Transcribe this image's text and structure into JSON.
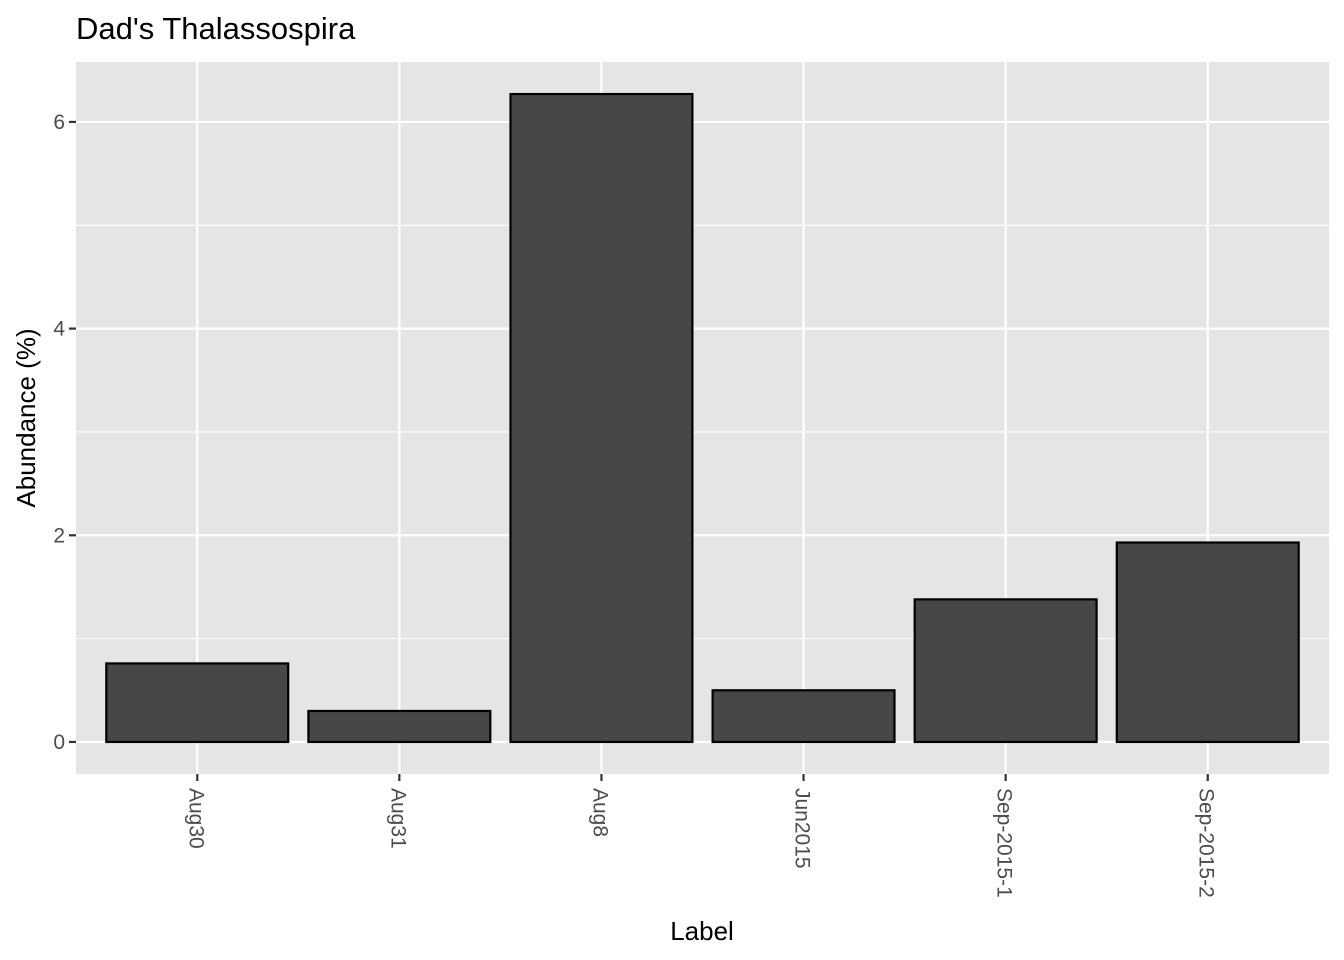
{
  "chart_data": {
    "type": "bar",
    "title": "Dad's Thalassospira",
    "xlabel": "Label",
    "ylabel": "Abundance (%)",
    "categories": [
      "Aug30",
      "Aug31",
      "Aug8",
      "Jun2015",
      "Sep-2015-1",
      "Sep-2015-2"
    ],
    "values": [
      0.76,
      0.3,
      6.27,
      0.5,
      1.38,
      1.93
    ],
    "ylim": [
      -0.31,
      6.58
    ],
    "yticks": [
      0,
      2,
      4,
      6
    ],
    "ytick_labels": [
      "0",
      "2",
      "4",
      "6"
    ],
    "grid": true,
    "colors": {
      "panel_background": "#e5e5e5",
      "grid": "#ffffff",
      "bar_fill": "#474747",
      "bar_outline": "#000000",
      "tick_label": "#4d4d4d",
      "tick": "#333333"
    }
  }
}
